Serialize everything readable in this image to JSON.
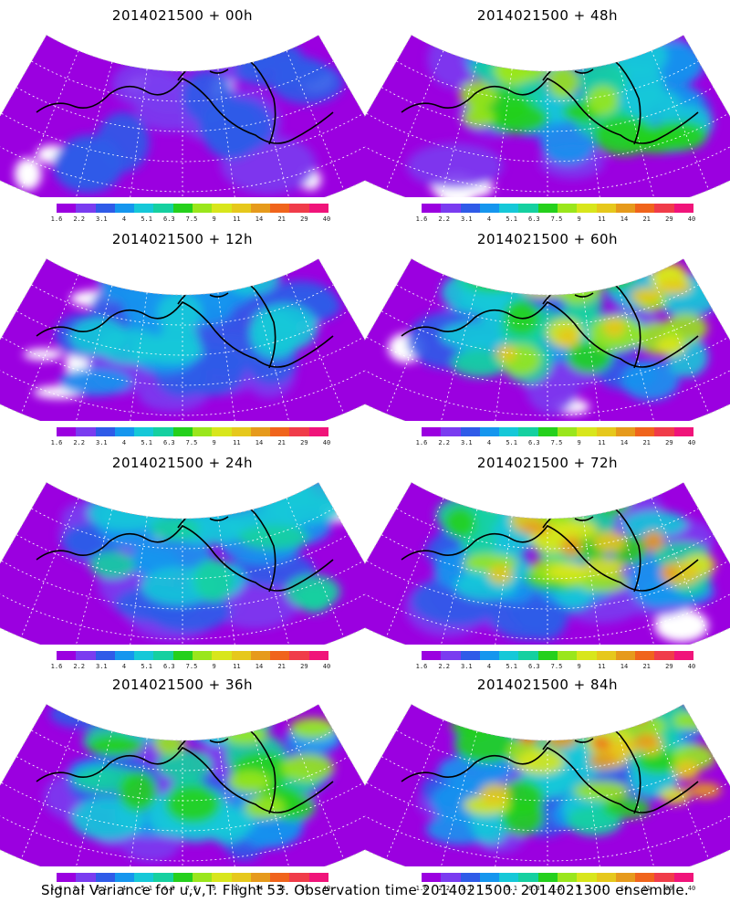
{
  "panels": [
    {
      "title": "2014021500 + 00h",
      "col": 0,
      "row": 0,
      "intensity": 0.15
    },
    {
      "title": "2014021500 + 12h",
      "col": 0,
      "row": 1,
      "intensity": 0.3
    },
    {
      "title": "2014021500 + 24h",
      "col": 0,
      "row": 2,
      "intensity": 0.45
    },
    {
      "title": "2014021500 + 36h",
      "col": 0,
      "row": 3,
      "intensity": 0.58
    },
    {
      "title": "2014021500 + 48h",
      "col": 1,
      "row": 0,
      "intensity": 0.62
    },
    {
      "title": "2014021500 + 60h",
      "col": 1,
      "row": 1,
      "intensity": 0.72
    },
    {
      "title": "2014021500 + 72h",
      "col": 1,
      "row": 2,
      "intensity": 0.8
    },
    {
      "title": "2014021500 + 84h",
      "col": 1,
      "row": 3,
      "intensity": 0.9
    }
  ],
  "colorbar": {
    "colors": [
      "#9b00e0",
      "#7a3cf0",
      "#2f5be8",
      "#1596ee",
      "#15c8d8",
      "#15d0a0",
      "#25d01c",
      "#9ae61c",
      "#d8e61c",
      "#e6c81c",
      "#e69a1c",
      "#f0641c",
      "#f03c4a",
      "#f0147a"
    ],
    "labels": [
      "1.6",
      "2.2",
      "3.1",
      "4",
      "5.1",
      "6.3",
      "7.5",
      "9",
      "11",
      "14",
      "21",
      "29",
      "40"
    ]
  },
  "caption": "Signal Variance for u,v,T. Flight 53. Observation time 2014021500. 2014021300 ensemble."
}
